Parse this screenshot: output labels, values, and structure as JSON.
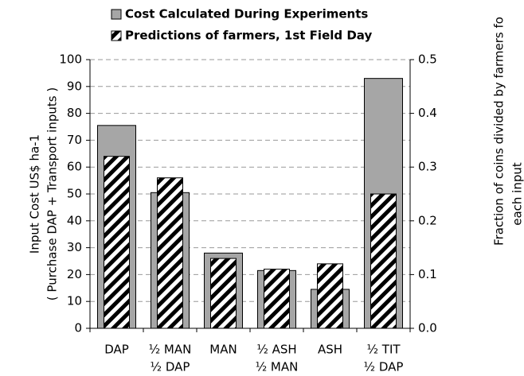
{
  "chart_data": {
    "type": "bar",
    "categories": [
      [
        "DAP"
      ],
      [
        "½ MAN",
        "½ DAP"
      ],
      [
        "MAN"
      ],
      [
        "½ ASH",
        "½ MAN"
      ],
      [
        "ASH"
      ],
      [
        "½ TIT",
        "½ DAP"
      ]
    ],
    "series": [
      {
        "name": "Cost Calculated During Experiments",
        "color": "#a6a6a6",
        "values": [
          75.5,
          50.5,
          28,
          21.5,
          14.5,
          93
        ]
      },
      {
        "name": "Predictions of farmers, 1st Field Day",
        "color": "#000000",
        "axis": "y2",
        "values": [
          0.32,
          0.28,
          0.13,
          0.11,
          0.12,
          0.25
        ]
      }
    ],
    "y_label": [
      "Input Cost US$ ha-1",
      "( Purchase DAP + Transport inputs )"
    ],
    "y2_label": [
      "Fraction of coins divided by farmers fo",
      "each input"
    ],
    "ylim": [
      0,
      100
    ],
    "yticks": [
      0,
      10,
      20,
      30,
      40,
      50,
      60,
      70,
      80,
      90,
      100
    ],
    "y2lim": [
      0,
      0.5
    ],
    "y2ticks": [
      {
        "value": 0,
        "label": "0.0"
      },
      0.1,
      0.2,
      0.3,
      0.4,
      0.5
    ],
    "grid": true
  }
}
